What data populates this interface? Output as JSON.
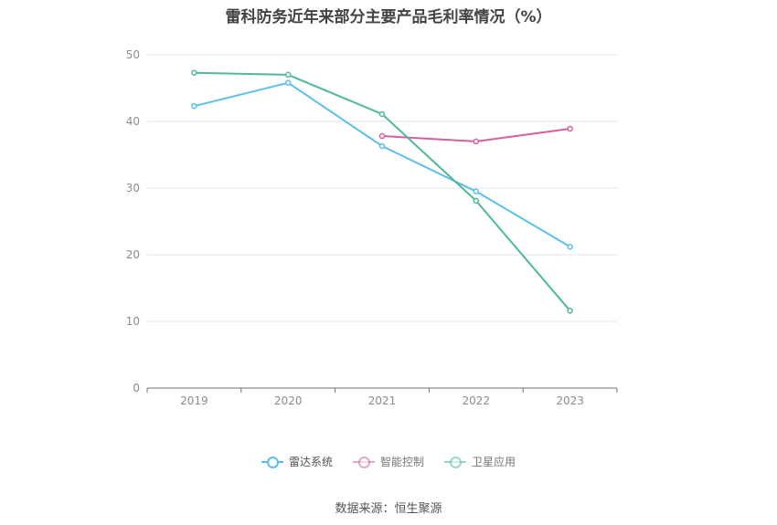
{
  "chart_data": {
    "type": "line",
    "title": "雷科防务近年来部分主要产品毛利率情况（%）",
    "categories": [
      "2019",
      "2020",
      "2021",
      "2022",
      "2023"
    ],
    "ylim": [
      0,
      50
    ],
    "yticks": [
      0,
      10,
      20,
      30,
      40,
      50
    ],
    "grid": true,
    "legend_position": "bottom-center",
    "series": [
      {
        "name": "雷达系统",
        "color": "#5bc0eb",
        "values": [
          42.3,
          45.8,
          36.3,
          29.5,
          21.2
        ]
      },
      {
        "name": "智能控制",
        "color": "#d4609e",
        "values": [
          null,
          null,
          37.8,
          37.0,
          38.9
        ]
      },
      {
        "name": "卫星应用",
        "color": "#4fb99a",
        "values": [
          47.3,
          47.0,
          41.1,
          28.1,
          11.6
        ]
      }
    ]
  },
  "source": "数据来源：恒生聚源"
}
